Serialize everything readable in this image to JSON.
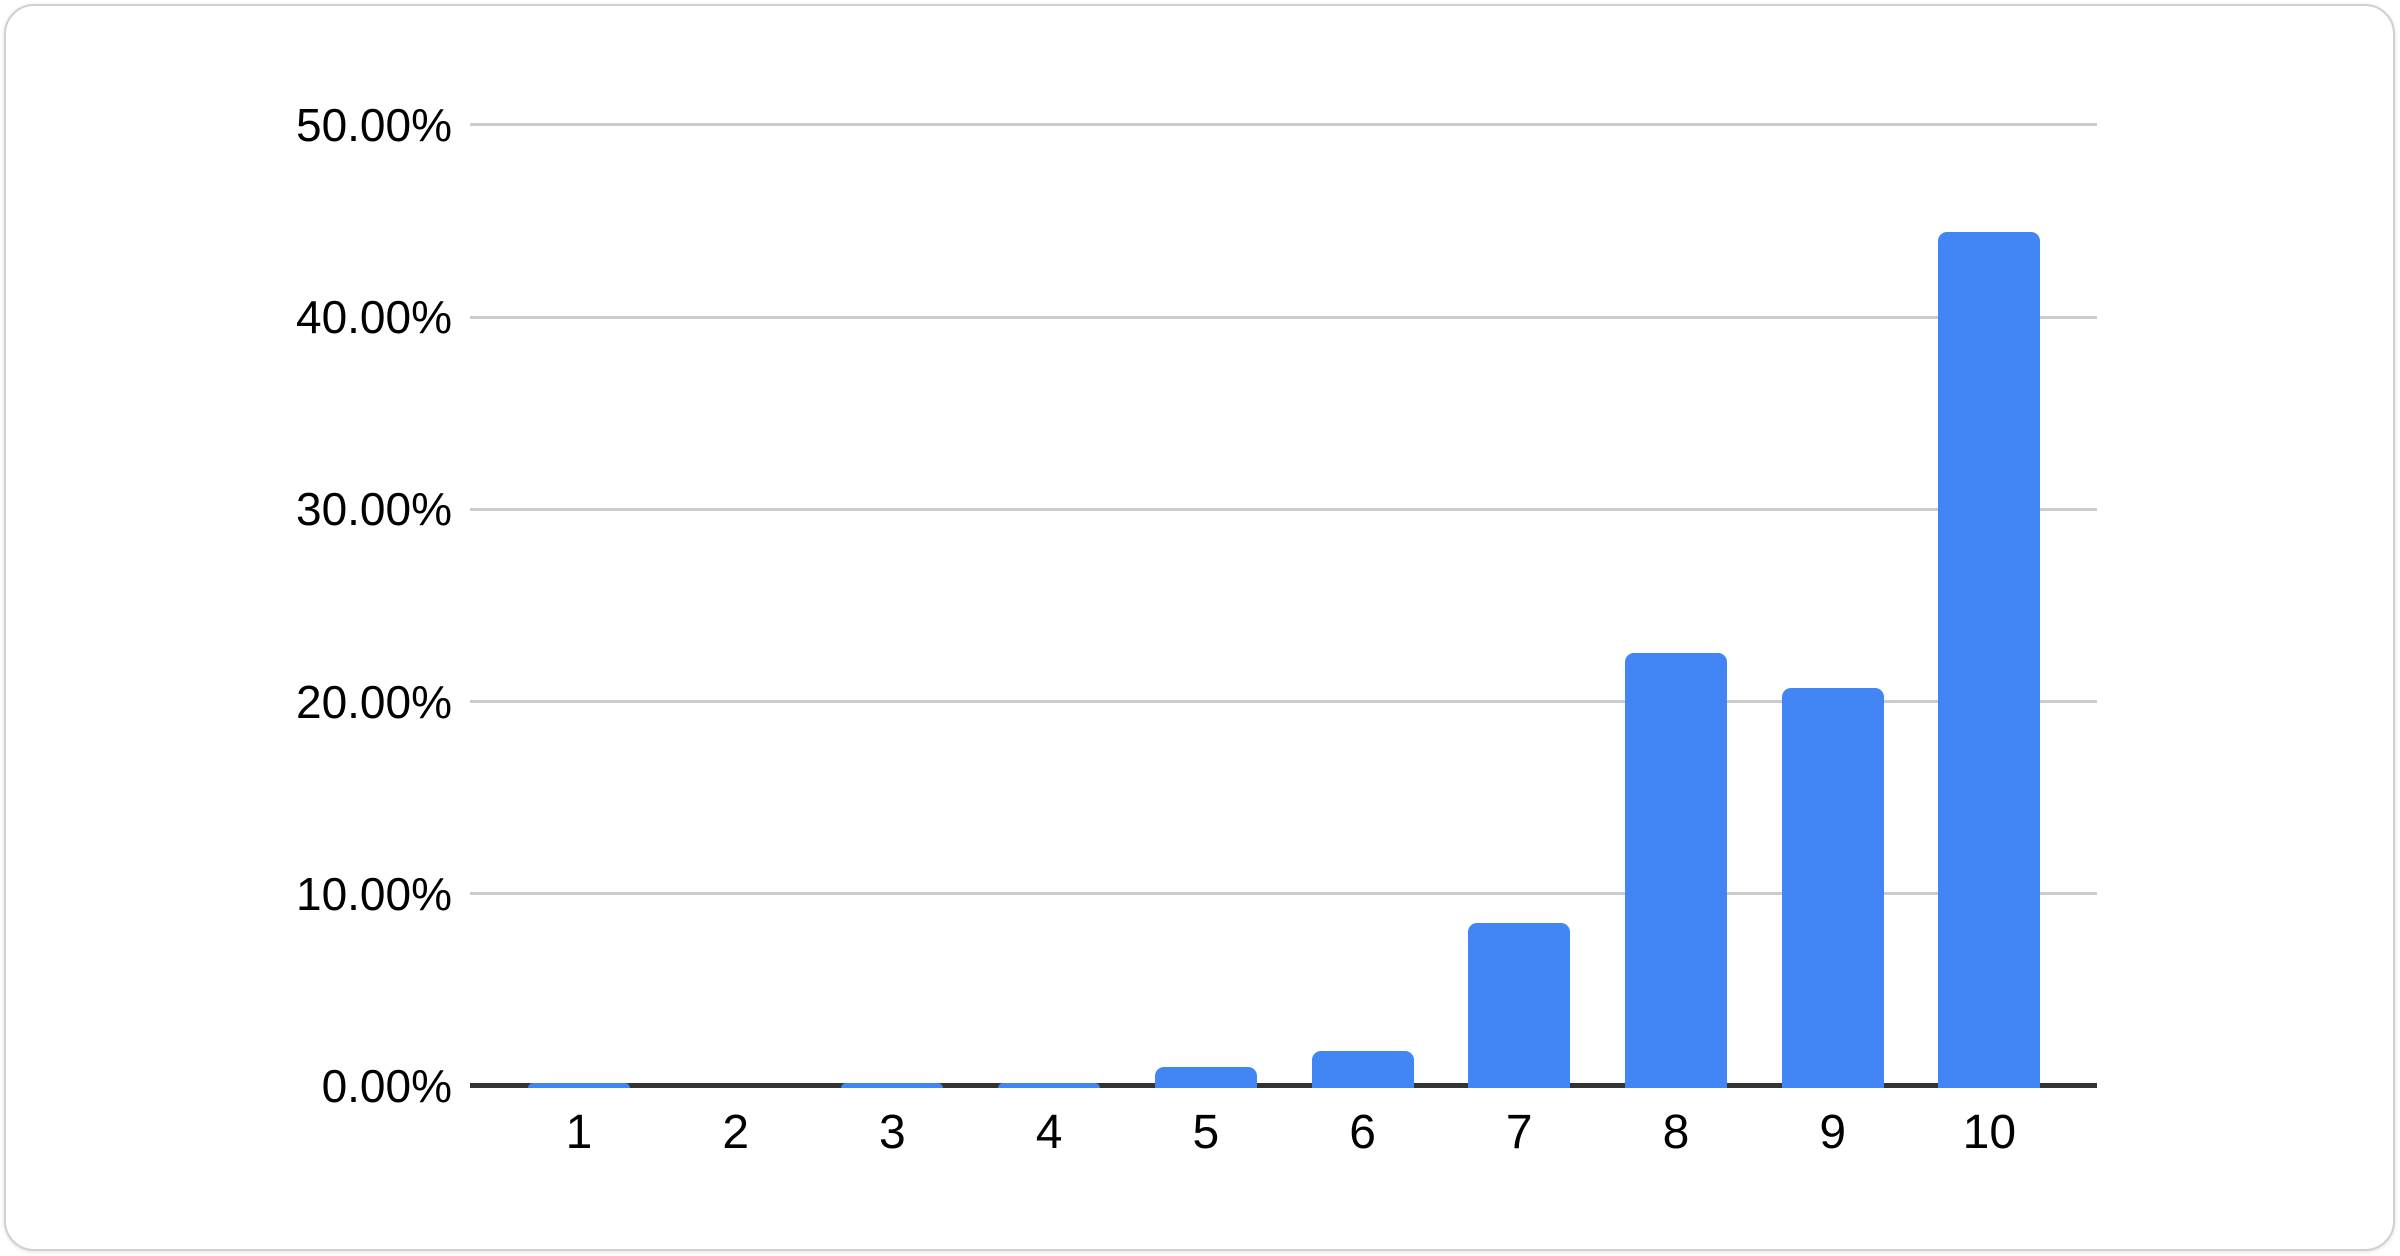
{
  "chart_data": {
    "type": "bar",
    "categories": [
      "1",
      "2",
      "3",
      "4",
      "5",
      "6",
      "7",
      "8",
      "9",
      "10"
    ],
    "values": [
      0.1,
      0,
      0.1,
      0.1,
      1.0,
      1.8,
      8.5,
      22.5,
      20.7,
      44.4
    ],
    "value_unit": "percent",
    "series_count": 1,
    "title": "",
    "xlabel": "",
    "ylabel": "",
    "ylim": [
      0,
      50
    ],
    "grid": true,
    "legend": "none",
    "y_ticks": [
      {
        "value": 50,
        "label": "50.00%"
      },
      {
        "value": 40,
        "label": "40.00%"
      },
      {
        "value": 30,
        "label": "30.00%"
      },
      {
        "value": 20,
        "label": "20.00%"
      },
      {
        "value": 10,
        "label": "10.00%"
      },
      {
        "value": 0,
        "label": "0.00%"
      }
    ],
    "colors": {
      "bar": "#4285f4",
      "gridline": "#cccccc",
      "axis": "#333333",
      "label": "#000000",
      "card_border": "#ccd1d6",
      "background": "#ffffff"
    }
  }
}
